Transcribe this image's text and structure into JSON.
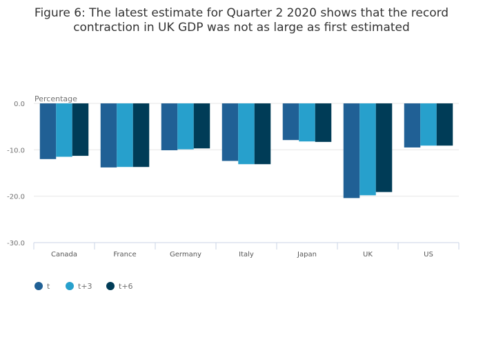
{
  "chart_data": {
    "type": "bar",
    "title_lines": [
      "Figure 6: The latest estimate for Quarter 2 2020 shows that the record",
      "contraction in UK GDP was not as large as first estimated"
    ],
    "ylabel": "Percentage",
    "xlabel": "",
    "ylim": [
      -30,
      0
    ],
    "yticks": [
      "0.0",
      "-10.0",
      "-20.0",
      "-30.0"
    ],
    "grid": true,
    "legend_position": "bottom-left",
    "categories": [
      "Canada",
      "France",
      "Germany",
      "Italy",
      "Japan",
      "UK",
      "US"
    ],
    "series": [
      {
        "name": "t",
        "color": "#206095",
        "values": [
          -12.0,
          -13.8,
          -10.1,
          -12.4,
          -7.9,
          -20.4,
          -9.5
        ]
      },
      {
        "name": "t+3",
        "color": "#27a0cc",
        "values": [
          -11.5,
          -13.7,
          -9.9,
          -13.1,
          -8.2,
          -19.8,
          -9.1
        ]
      },
      {
        "name": "t+6",
        "color": "#003c57",
        "values": [
          -11.3,
          -13.7,
          -9.7,
          -13.1,
          -8.3,
          -19.1,
          -9.1
        ]
      }
    ]
  }
}
